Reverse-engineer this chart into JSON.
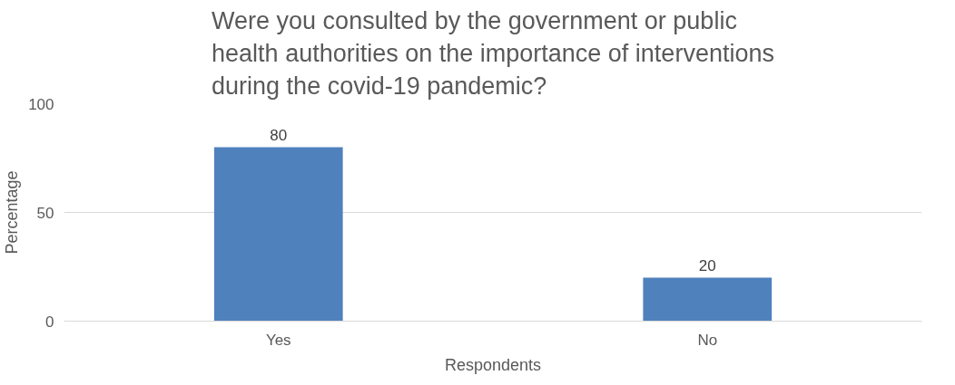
{
  "chart_data": {
    "type": "bar",
    "title": "Were you consulted by the government or public\nhealth authorities on the importance of interventions\nduring the covid-19 pandemic?",
    "xlabel": "Respondents",
    "ylabel": "Percentage",
    "categories": [
      "Yes",
      "No"
    ],
    "values": [
      80,
      20
    ],
    "color": "#4f81bd",
    "ylim": [
      0,
      100
    ],
    "yticks": [
      0,
      50,
      100
    ],
    "grid": "y",
    "data_labels": true
  }
}
